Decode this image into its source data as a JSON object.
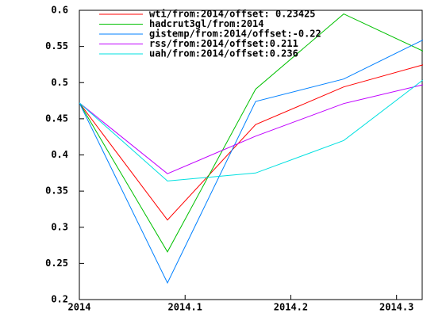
{
  "chart_data": {
    "type": "line",
    "x": [
      2014,
      2014.0833,
      2014.1667,
      2014.25,
      2014.3333
    ],
    "series": [
      {
        "name": "wti/from:2014/offset: 0.23425",
        "color": "#ff0000",
        "values": [
          0.472,
          0.31,
          0.442,
          0.494,
          0.528
        ]
      },
      {
        "name": "hadcrut3gl/from:2014",
        "color": "#00c000",
        "values": [
          0.472,
          0.266,
          0.491,
          0.595,
          0.538
        ]
      },
      {
        "name": "gistemp/from:2014/offset:-0.22",
        "color": "#0080ff",
        "values": [
          0.472,
          0.223,
          0.474,
          0.505,
          0.565
        ]
      },
      {
        "name": "rss/from:2014/offset:0.211",
        "color": "#c000ff",
        "values": [
          0.472,
          0.374,
          0.426,
          0.471,
          0.5
        ]
      },
      {
        "name": "uah/from:2014/offset:0.236",
        "color": "#00e0e0",
        "values": [
          0.472,
          0.364,
          0.375,
          0.42,
          0.513
        ]
      }
    ],
    "xlim": [
      2014,
      2014.325
    ],
    "xticks": [
      2014,
      2014.1,
      2014.2,
      2014.3
    ],
    "ylim": [
      0.2,
      0.6
    ],
    "yticks": [
      0.2,
      0.25,
      0.3,
      0.35,
      0.4,
      0.45,
      0.5,
      0.55,
      0.6
    ]
  }
}
